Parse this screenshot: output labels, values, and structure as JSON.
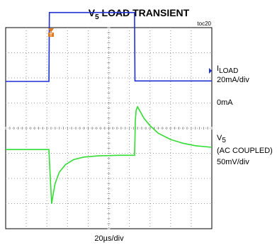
{
  "chart_data": {
    "type": "line",
    "title_main": "V",
    "title_sub": "5",
    "title_rest": " LOAD TRANSIENT",
    "figure_tag": "toc20",
    "xlabel": "20µs/div",
    "divisions": {
      "x": 10,
      "y": 8
    },
    "labels": {
      "iload_main": "I",
      "iload_sub": "LOAD",
      "iload_scale": "20mA/div",
      "zero_ma": "0mA",
      "v5_main": "V",
      "v5_sub": "5",
      "v5_coupling": "(AC COUPLED)",
      "v5_scale": "50mV/div"
    },
    "colors": {
      "iload": "#1f2fd6",
      "v5": "#33dd33",
      "trigger": "#e07820",
      "grid": "#999999"
    },
    "series": [
      {
        "name": "ILOAD",
        "x_units": "div",
        "y_units": "div",
        "points": [
          [
            0,
            1.86
          ],
          [
            2.1,
            1.86
          ],
          [
            2.12,
            4.6
          ],
          [
            6.25,
            4.6
          ],
          [
            6.27,
            1.88
          ],
          [
            10,
            1.88
          ]
        ]
      },
      {
        "name": "V5",
        "x_units": "div",
        "y_units": "div",
        "points": [
          [
            0,
            -0.85
          ],
          [
            2.1,
            -0.85
          ],
          [
            2.12,
            -1.25
          ],
          [
            2.18,
            -2.2
          ],
          [
            2.23,
            -3.0
          ],
          [
            2.3,
            -2.65
          ],
          [
            2.4,
            -2.2
          ],
          [
            2.6,
            -1.75
          ],
          [
            2.9,
            -1.45
          ],
          [
            3.3,
            -1.25
          ],
          [
            3.8,
            -1.15
          ],
          [
            4.5,
            -1.1
          ],
          [
            5.5,
            -1.08
          ],
          [
            6.25,
            -1.08
          ],
          [
            6.27,
            -0.4
          ],
          [
            6.29,
            0.3
          ],
          [
            6.33,
            0.72
          ],
          [
            6.4,
            0.85
          ],
          [
            6.5,
            0.7
          ],
          [
            6.7,
            0.4
          ],
          [
            7.0,
            0.1
          ],
          [
            7.4,
            -0.2
          ],
          [
            8.0,
            -0.45
          ],
          [
            8.6,
            -0.6
          ],
          [
            9.2,
            -0.7
          ],
          [
            10,
            -0.76
          ]
        ]
      }
    ]
  }
}
